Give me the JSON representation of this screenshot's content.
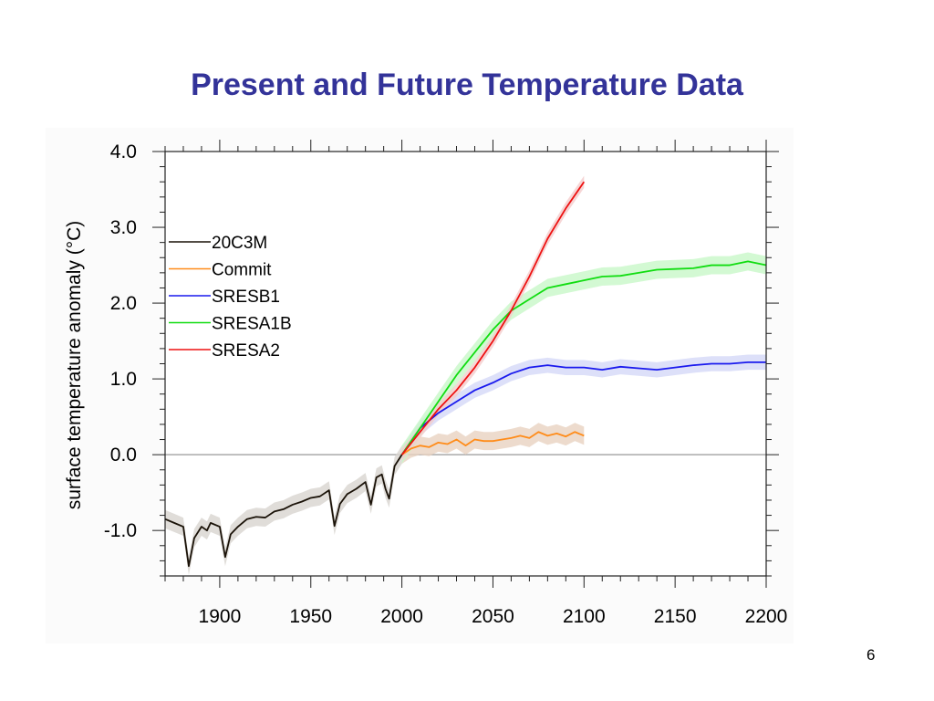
{
  "slide": {
    "title": "Present and Future Temperature Data",
    "page_number": "6"
  },
  "chart_data": {
    "type": "line",
    "title": "",
    "xlabel": "",
    "ylabel": "surface temperature anomaly (°C)",
    "xlim": [
      1870,
      2200
    ],
    "ylim": [
      -1.6,
      4.0
    ],
    "xticks": [
      1900,
      1950,
      2000,
      2050,
      2100,
      2150,
      2200
    ],
    "xtick_labels": [
      "1900",
      "1950",
      "2000",
      "2050",
      "2100",
      "2150",
      "2200"
    ],
    "yticks": [
      -1.0,
      0.0,
      1.0,
      2.0,
      3.0,
      4.0
    ],
    "ytick_labels": [
      "-1.0",
      "0.0",
      "1.0",
      "2.0",
      "3.0",
      "4.0"
    ],
    "reference_line_y": 0.0,
    "grid": false,
    "legend_position": "upper-left",
    "series": [
      {
        "name": "20C3M",
        "color": "#1a1208",
        "band_color": "#d8d4d0",
        "spread": 0.12,
        "x": [
          1870,
          1875,
          1880,
          1883,
          1886,
          1890,
          1893,
          1895,
          1900,
          1903,
          1906,
          1910,
          1915,
          1920,
          1925,
          1930,
          1935,
          1940,
          1945,
          1950,
          1955,
          1960,
          1963,
          1966,
          1970,
          1975,
          1980,
          1983,
          1986,
          1989,
          1991,
          1993,
          1996,
          2000
        ],
        "y": [
          -0.85,
          -0.9,
          -0.95,
          -1.47,
          -1.1,
          -0.95,
          -1.0,
          -0.9,
          -0.95,
          -1.35,
          -1.05,
          -0.95,
          -0.85,
          -0.82,
          -0.83,
          -0.75,
          -0.72,
          -0.66,
          -0.62,
          -0.57,
          -0.55,
          -0.47,
          -0.94,
          -0.65,
          -0.52,
          -0.45,
          -0.36,
          -0.66,
          -0.3,
          -0.26,
          -0.45,
          -0.58,
          -0.15,
          0.0
        ]
      },
      {
        "name": "Commit",
        "color": "#ff8c1a",
        "band_color": "#e8d2c0",
        "spread": 0.12,
        "x": [
          2000,
          2005,
          2010,
          2015,
          2020,
          2025,
          2030,
          2035,
          2040,
          2045,
          2050,
          2055,
          2060,
          2065,
          2070,
          2075,
          2080,
          2085,
          2090,
          2095,
          2100
        ],
        "y": [
          0.0,
          0.08,
          0.12,
          0.1,
          0.16,
          0.14,
          0.2,
          0.12,
          0.2,
          0.18,
          0.18,
          0.2,
          0.22,
          0.25,
          0.22,
          0.3,
          0.25,
          0.28,
          0.24,
          0.3,
          0.25
        ]
      },
      {
        "name": "SRESB1",
        "color": "#1a1aee",
        "band_color": "#d4d8f8",
        "spread": 0.1,
        "x": [
          2000,
          2010,
          2020,
          2030,
          2040,
          2050,
          2060,
          2070,
          2080,
          2090,
          2100,
          2110,
          2120,
          2130,
          2140,
          2150,
          2160,
          2170,
          2180,
          2190,
          2200
        ],
        "y": [
          0.0,
          0.35,
          0.55,
          0.7,
          0.85,
          0.95,
          1.07,
          1.15,
          1.18,
          1.15,
          1.15,
          1.12,
          1.16,
          1.14,
          1.12,
          1.15,
          1.18,
          1.2,
          1.2,
          1.22,
          1.22
        ]
      },
      {
        "name": "SRESA1B",
        "color": "#11dd11",
        "band_color": "#c8f8c8",
        "spread": 0.12,
        "x": [
          2000,
          2010,
          2020,
          2030,
          2040,
          2050,
          2060,
          2070,
          2080,
          2090,
          2100,
          2110,
          2120,
          2130,
          2140,
          2150,
          2160,
          2170,
          2180,
          2190,
          2200
        ],
        "y": [
          0.0,
          0.35,
          0.7,
          1.05,
          1.35,
          1.65,
          1.9,
          2.05,
          2.2,
          2.25,
          2.3,
          2.35,
          2.36,
          2.4,
          2.44,
          2.45,
          2.46,
          2.5,
          2.5,
          2.55,
          2.5
        ]
      },
      {
        "name": "SRESA2",
        "color": "#ee1111",
        "band_color": "#f4cccc",
        "spread": 0.08,
        "x": [
          2000,
          2010,
          2020,
          2030,
          2040,
          2050,
          2060,
          2070,
          2080,
          2090,
          2100
        ],
        "y": [
          0.0,
          0.3,
          0.6,
          0.85,
          1.15,
          1.5,
          1.9,
          2.35,
          2.85,
          3.25,
          3.6
        ]
      }
    ]
  }
}
